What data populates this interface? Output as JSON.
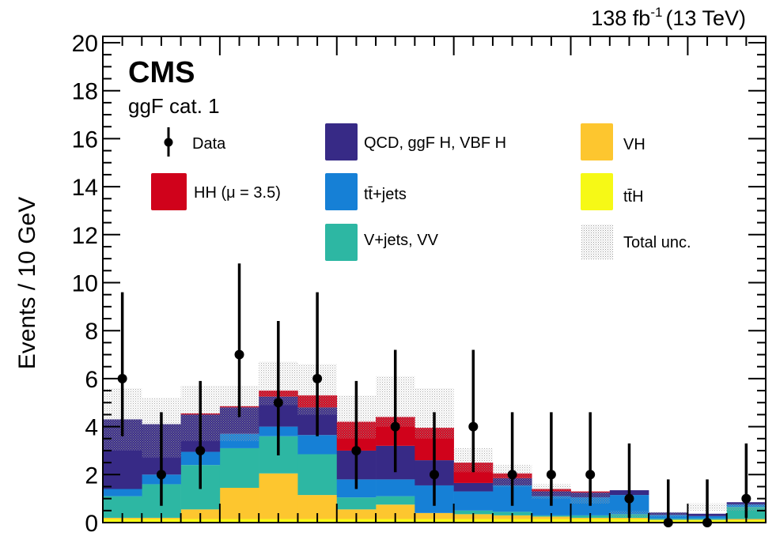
{
  "chart_data": {
    "type": "bar",
    "subtype": "stacked-histogram",
    "title": "",
    "experiment_label": "CMS",
    "category_label": "ggF cat. 1",
    "lumi_label": "138 fb",
    "lumi_exponent": "-1",
    "energy_label": "(13 TeV)",
    "xlabel": "",
    "ylabel": "Events / 10 GeV",
    "ylim": [
      0,
      20
    ],
    "yticks": [
      "0",
      "2",
      "4",
      "6",
      "8",
      "10",
      "12",
      "14",
      "16",
      "18",
      "20"
    ],
    "n_bins": 17,
    "grid": false,
    "legend_placement": "top",
    "legend": [
      {
        "key": "data",
        "label": "Data",
        "kind": "marker"
      },
      {
        "key": "qcd",
        "label": "QCD, ggF H, VBF H",
        "color": "#372a86"
      },
      {
        "key": "vh",
        "label": "VH",
        "color": "#fdc62f"
      },
      {
        "key": "hh",
        "label": "HH (μ = 3.5)",
        "color": "#d0021b"
      },
      {
        "key": "tt",
        "label": "tt̄+jets",
        "color": "#1680d6"
      },
      {
        "key": "tth",
        "label": "tt̄H",
        "color": "#f6f916"
      },
      {
        "key": "vjets",
        "label": "V+jets, VV",
        "color": "#2db7a3"
      },
      {
        "key": "unc",
        "label": "Total unc.",
        "kind": "hatch"
      }
    ],
    "stack_order": [
      "tth",
      "vh",
      "vjets",
      "tt",
      "qcd",
      "hh"
    ],
    "series": [
      {
        "name": "tt̄H",
        "key": "tth",
        "color": "#f6f916",
        "values": [
          0.15,
          0.15,
          0.15,
          0.15,
          0.15,
          0.15,
          0.15,
          0.15,
          0.15,
          0.15,
          0.15,
          0.15,
          0.15,
          0.15,
          0.1,
          0.1,
          0.1
        ]
      },
      {
        "name": "VH",
        "key": "vh",
        "color": "#fdc62f",
        "values": [
          0.05,
          0.05,
          0.4,
          1.3,
          1.9,
          1.0,
          0.4,
          0.6,
          0.25,
          0.2,
          0.15,
          0.1,
          0.05,
          0.05,
          0.02,
          0.02,
          0.05
        ]
      },
      {
        "name": "V+jets, VV",
        "key": "vjets",
        "color": "#2db7a3",
        "values": [
          0.9,
          1.4,
          1.85,
          1.65,
          1.55,
          1.7,
          0.5,
          0.35,
          0.0,
          0.15,
          0.15,
          0.05,
          0.1,
          0.15,
          0.05,
          0.05,
          0.5
        ]
      },
      {
        "name": "tt̄+jets",
        "key": "tt",
        "color": "#1680d6",
        "values": [
          0.3,
          0.4,
          0.55,
          0.6,
          0.4,
          0.8,
          0.75,
          0.7,
          1.15,
          0.8,
          1.1,
          0.8,
          0.75,
          0.8,
          0.15,
          0.1,
          0.1
        ]
      },
      {
        "name": "QCD, ggF H, VBF H",
        "key": "qcd",
        "color": "#372a86",
        "values": [
          2.9,
          2.1,
          1.55,
          1.1,
          1.25,
          1.15,
          1.2,
          1.4,
          1.05,
          0.35,
          0.3,
          0.2,
          0.2,
          0.2,
          0.1,
          0.1,
          0.1
        ]
      },
      {
        "name": "HH (μ = 3.5)",
        "key": "hh",
        "color": "#d0021b",
        "values": [
          0.0,
          0.0,
          0.05,
          0.05,
          0.25,
          0.5,
          1.2,
          1.2,
          1.35,
          0.85,
          0.2,
          0.1,
          0.05,
          0.0,
          0.0,
          0.0,
          0.0
        ]
      }
    ],
    "total_unc_band": [
      {
        "low": 3.0,
        "high": 5.6
      },
      {
        "low": 2.7,
        "high": 5.2
      },
      {
        "low": 3.4,
        "high": 5.7
      },
      {
        "low": 3.4,
        "high": 5.7
      },
      {
        "low": 4.9,
        "high": 6.7
      },
      {
        "low": 4.5,
        "high": 6.6
      },
      {
        "low": 3.5,
        "high": 5.3
      },
      {
        "low": 4.0,
        "high": 6.1
      },
      {
        "low": 3.5,
        "high": 5.6
      },
      {
        "low": 2.1,
        "high": 3.1
      },
      {
        "low": 1.5,
        "high": 2.4
      },
      {
        "low": 1.0,
        "high": 1.6
      },
      {
        "low": 0.8,
        "high": 1.3
      },
      {
        "low": 0.25,
        "high": 0.5
      },
      {
        "low": 0.25,
        "high": 0.45
      },
      {
        "low": 0.5,
        "high": 0.8
      },
      {
        "low": 0.5,
        "high": 0.8
      }
    ],
    "data_points": [
      {
        "bin": 1,
        "y": 6,
        "err_low": 2.4,
        "err_high": 3.6
      },
      {
        "bin": 2,
        "y": 2,
        "err_low": 1.3,
        "err_high": 2.6
      },
      {
        "bin": 3,
        "y": 3,
        "err_low": 1.6,
        "err_high": 2.9
      },
      {
        "bin": 4,
        "y": 7,
        "err_low": 2.6,
        "err_high": 3.8
      },
      {
        "bin": 5,
        "y": 5,
        "err_low": 2.2,
        "err_high": 3.4
      },
      {
        "bin": 6,
        "y": 6,
        "err_low": 2.4,
        "err_high": 3.6
      },
      {
        "bin": 7,
        "y": 3,
        "err_low": 1.6,
        "err_high": 2.9
      },
      {
        "bin": 8,
        "y": 4,
        "err_low": 1.9,
        "err_high": 3.2
      },
      {
        "bin": 9,
        "y": 2,
        "err_low": 1.3,
        "err_high": 2.6
      },
      {
        "bin": 10,
        "y": 4,
        "err_low": 1.9,
        "err_high": 3.2
      },
      {
        "bin": 11,
        "y": 2,
        "err_low": 1.3,
        "err_high": 2.6
      },
      {
        "bin": 12,
        "y": 2,
        "err_low": 1.3,
        "err_high": 2.6
      },
      {
        "bin": 13,
        "y": 2,
        "err_low": 1.3,
        "err_high": 2.6
      },
      {
        "bin": 14,
        "y": 1,
        "err_low": 0.8,
        "err_high": 2.3
      },
      {
        "bin": 15,
        "y": 0,
        "err_low": 0,
        "err_high": 1.8
      },
      {
        "bin": 16,
        "y": 0,
        "err_low": 0,
        "err_high": 1.8
      },
      {
        "bin": 17,
        "y": 1,
        "err_low": 0.8,
        "err_high": 2.3
      }
    ]
  }
}
